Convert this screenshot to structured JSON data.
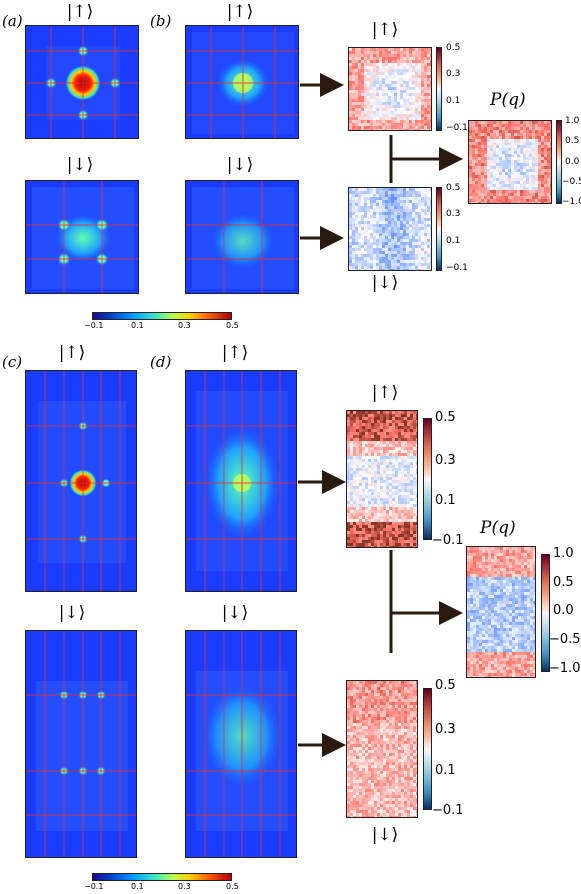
{
  "panel_labels": {
    "a": "(a)",
    "b": "(b)",
    "c": "(c)",
    "d": "(d)"
  },
  "kets": {
    "up": "|↑⟩",
    "down": "|↓⟩"
  },
  "pq_label": "P(q)",
  "colorbar_small": [
    "0.5",
    "0.3",
    "0.1",
    "−0.1"
  ],
  "colorbar_pq": [
    "1.0",
    "0.5",
    "0.0",
    "−0.5",
    "−1.0"
  ],
  "hbar_ticks": [
    "−0.1",
    "0.1",
    "0.3",
    "0.5"
  ],
  "colors": {
    "map_bg": "#1a3cff",
    "grid": "#e03030",
    "arrow": "#2a1a10"
  }
}
